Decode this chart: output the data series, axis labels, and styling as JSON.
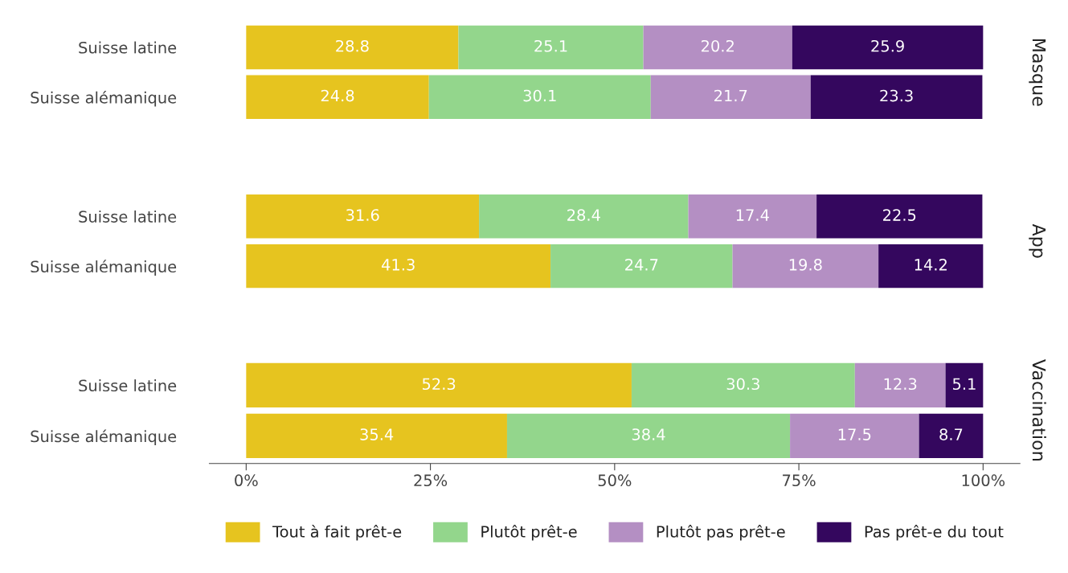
{
  "chart_data": [
    {
      "type": "bar",
      "orientation": "horizontal",
      "stacked": true,
      "y2label": "Masque",
      "categories": [
        "Suisse latine",
        "Suisse alémanique"
      ],
      "data_labels": true,
      "tick_labels": "y",
      "grid": false,
      "series": [
        {
          "color": "#e6c41f",
          "values": [
            28.8,
            24.8
          ]
        },
        {
          "color": "#93d68c",
          "values": [
            25.1,
            30.1
          ]
        },
        {
          "color": "#b48fc3",
          "values": [
            20.2,
            21.7
          ]
        },
        {
          "color": "#34075e",
          "values": [
            25.9,
            23.3
          ]
        }
      ]
    },
    {
      "type": "bar",
      "orientation": "horizontal",
      "stacked": true,
      "y2label": "App",
      "categories": [
        "Suisse latine",
        "Suisse alémanique"
      ],
      "data_labels": true,
      "tick_labels": "y",
      "grid": false,
      "series": [
        {
          "color": "#e6c41f",
          "values": [
            31.6,
            41.3
          ]
        },
        {
          "color": "#93d68c",
          "values": [
            28.4,
            24.7
          ]
        },
        {
          "color": "#b48fc3",
          "values": [
            17.4,
            19.8
          ]
        },
        {
          "color": "#34075e",
          "values": [
            22.5,
            14.2
          ]
        }
      ]
    },
    {
      "type": "bar",
      "orientation": "horizontal",
      "stacked": true,
      "y2label": "Vaccination",
      "categories": [
        "Suisse latine",
        "Suisse alémanique"
      ],
      "data_labels": true,
      "xlim": [
        -5,
        105
      ],
      "xticks": [
        {
          "value": 0,
          "label": "0%"
        },
        {
          "value": 25,
          "label": "25%"
        },
        {
          "value": 50,
          "label": "50%"
        },
        {
          "value": 75,
          "label": "75%"
        },
        {
          "value": 100,
          "label": "100%"
        }
      ],
      "grid": false,
      "legend": "bottom",
      "series": [
        {
          "name": "Tout à fait prêt-e",
          "color": "#e6c41f",
          "values": [
            52.3,
            35.4
          ]
        },
        {
          "name": "Plutôt prêt-e",
          "color": "#93d68c",
          "values": [
            30.3,
            38.4
          ]
        },
        {
          "name": "Plutôt pas prêt-e",
          "color": "#b48fc3",
          "values": [
            12.3,
            17.5
          ]
        },
        {
          "name": "Pas prêt-e du tout",
          "color": "#34075e",
          "values": [
            5.1,
            8.7
          ]
        }
      ]
    }
  ]
}
